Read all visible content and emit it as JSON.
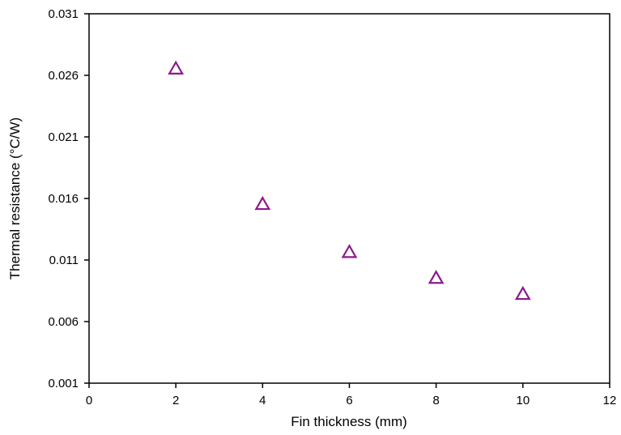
{
  "chart_data": {
    "type": "scatter",
    "title": "",
    "xlabel": "Fin thickness (mm)",
    "ylabel": "Thermal resistance (°C/W)",
    "xlim": [
      0,
      12
    ],
    "ylim": [
      0.001,
      0.031
    ],
    "xticks": [
      0,
      2,
      4,
      6,
      8,
      10,
      12
    ],
    "xtick_labels": [
      "0",
      "2",
      "4",
      "6",
      "8",
      "10",
      "12"
    ],
    "yticks": [
      0.001,
      0.006,
      0.011,
      0.016,
      0.021,
      0.026,
      0.031
    ],
    "ytick_labels": [
      "0.001",
      "0.006",
      "0.011",
      "0.016",
      "0.021",
      "0.026",
      "0.031"
    ],
    "grid": false,
    "legend": "none",
    "marker": "open-triangle",
    "marker_color": "#8B1A8B",
    "series": [
      {
        "x": [
          2,
          4,
          6,
          8,
          10
        ],
        "y": [
          0.0266,
          0.0156,
          0.0117,
          0.0096,
          0.0083
        ]
      }
    ]
  }
}
